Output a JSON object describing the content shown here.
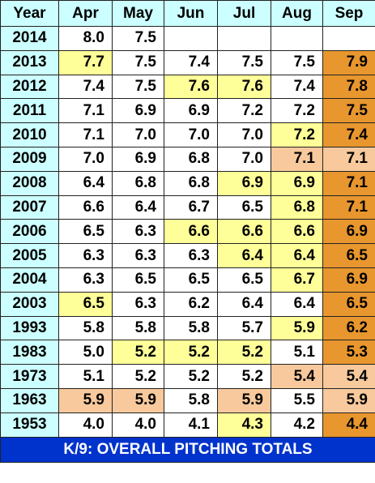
{
  "table": {
    "header": [
      "Year",
      "Apr",
      "May",
      "Jun",
      "Jul",
      "Aug",
      "Sep"
    ],
    "rows": [
      {
        "year": "2014",
        "values": [
          "8.0",
          "7.5",
          null,
          null,
          null,
          null
        ],
        "fills": [
          "#ffffff",
          "#ffffff",
          "#ffffff",
          "#ffffff",
          "#ffffff",
          "#ffffff"
        ]
      },
      {
        "year": "2013",
        "values": [
          "7.7",
          "7.5",
          "7.4",
          "7.5",
          "7.5",
          "7.9"
        ],
        "fills": [
          "#ffff99",
          "#ffffff",
          "#ffffff",
          "#ffffff",
          "#ffffff",
          "#e8962e"
        ]
      },
      {
        "year": "2012",
        "values": [
          "7.4",
          "7.5",
          "7.6",
          "7.6",
          "7.4",
          "7.8"
        ],
        "fills": [
          "#ffffff",
          "#ffffff",
          "#ffff99",
          "#ffff99",
          "#ffffff",
          "#e8962e"
        ]
      },
      {
        "year": "2011",
        "values": [
          "7.1",
          "6.9",
          "6.9",
          "7.2",
          "7.2",
          "7.5"
        ],
        "fills": [
          "#ffffff",
          "#ffffff",
          "#ffffff",
          "#ffffff",
          "#ffffff",
          "#e8962e"
        ]
      },
      {
        "year": "2010",
        "values": [
          "7.1",
          "7.0",
          "7.0",
          "7.0",
          "7.2",
          "7.4"
        ],
        "fills": [
          "#ffffff",
          "#ffffff",
          "#ffffff",
          "#ffffff",
          "#ffff99",
          "#e8962e"
        ]
      },
      {
        "year": "2009",
        "values": [
          "7.0",
          "6.9",
          "6.8",
          "7.0",
          "7.1",
          "7.1"
        ],
        "fills": [
          "#ffffff",
          "#ffffff",
          "#ffffff",
          "#ffffff",
          "#f7c99c",
          "#f7c99c"
        ]
      },
      {
        "year": "2008",
        "values": [
          "6.4",
          "6.8",
          "6.8",
          "6.9",
          "6.9",
          "7.1"
        ],
        "fills": [
          "#ffffff",
          "#ffffff",
          "#ffffff",
          "#ffff99",
          "#ffff99",
          "#e8962e"
        ]
      },
      {
        "year": "2007",
        "values": [
          "6.6",
          "6.4",
          "6.7",
          "6.5",
          "6.8",
          "7.1"
        ],
        "fills": [
          "#ffffff",
          "#ffffff",
          "#ffffff",
          "#ffffff",
          "#ffff99",
          "#e8962e"
        ]
      },
      {
        "year": "2006",
        "values": [
          "6.5",
          "6.3",
          "6.6",
          "6.6",
          "6.6",
          "6.9"
        ],
        "fills": [
          "#ffffff",
          "#ffffff",
          "#ffff99",
          "#ffff99",
          "#ffff99",
          "#e8962e"
        ]
      },
      {
        "year": "2005",
        "values": [
          "6.3",
          "6.3",
          "6.3",
          "6.4",
          "6.4",
          "6.5"
        ],
        "fills": [
          "#ffffff",
          "#ffffff",
          "#ffffff",
          "#ffff99",
          "#ffff99",
          "#e8962e"
        ]
      },
      {
        "year": "2004",
        "values": [
          "6.3",
          "6.5",
          "6.5",
          "6.5",
          "6.7",
          "6.9"
        ],
        "fills": [
          "#ffffff",
          "#ffffff",
          "#ffffff",
          "#ffffff",
          "#ffff99",
          "#e8962e"
        ]
      },
      {
        "year": "2003",
        "values": [
          "6.5",
          "6.3",
          "6.2",
          "6.4",
          "6.4",
          "6.5"
        ],
        "fills": [
          "#ffff99",
          "#ffffff",
          "#ffffff",
          "#ffffff",
          "#ffffff",
          "#e8962e"
        ]
      },
      {
        "year": "1993",
        "values": [
          "5.8",
          "5.8",
          "5.8",
          "5.7",
          "5.9",
          "6.2"
        ],
        "fills": [
          "#ffffff",
          "#ffffff",
          "#ffffff",
          "#ffffff",
          "#ffff99",
          "#e8962e"
        ]
      },
      {
        "year": "1983",
        "values": [
          "5.0",
          "5.2",
          "5.2",
          "5.2",
          "5.1",
          "5.3"
        ],
        "fills": [
          "#ffffff",
          "#ffff99",
          "#ffff99",
          "#ffff99",
          "#ffffff",
          "#e8962e"
        ]
      },
      {
        "year": "1973",
        "values": [
          "5.1",
          "5.2",
          "5.2",
          "5.2",
          "5.4",
          "5.4"
        ],
        "fills": [
          "#ffffff",
          "#ffffff",
          "#ffffff",
          "#ffffff",
          "#f7c99c",
          "#f7c99c"
        ]
      },
      {
        "year": "1963",
        "values": [
          "5.9",
          "5.9",
          "5.8",
          "5.9",
          "5.5",
          "5.9"
        ],
        "fills": [
          "#f7c99c",
          "#f7c99c",
          "#ffffff",
          "#f7c99c",
          "#ffffff",
          "#f7c99c"
        ]
      },
      {
        "year": "1953",
        "values": [
          "4.0",
          "4.0",
          "4.1",
          "4.3",
          "4.2",
          "4.4"
        ],
        "fills": [
          "#ffffff",
          "#ffffff",
          "#ffffff",
          "#ffff99",
          "#ffffff",
          "#e8962e"
        ]
      }
    ],
    "footer": "K/9: OVERALL PITCHING TOTALS"
  }
}
